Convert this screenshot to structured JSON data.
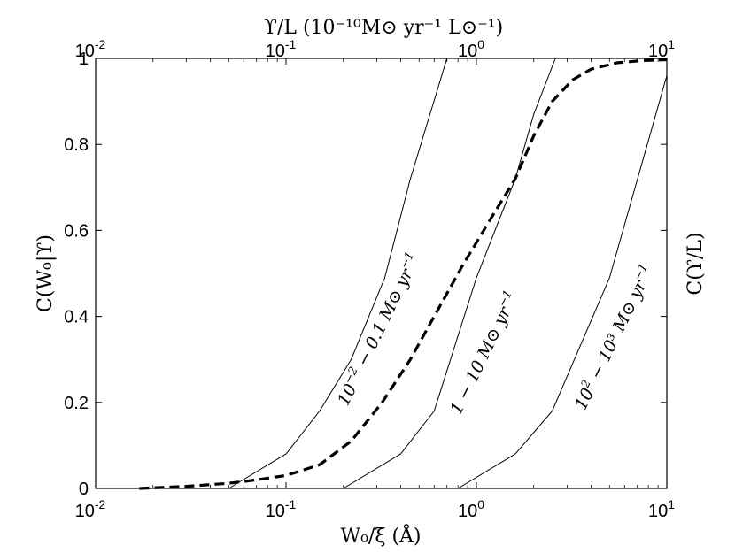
{
  "chart_data": {
    "type": "line",
    "x_scale": "log",
    "xlim": [
      0.01,
      10
    ],
    "ylim": [
      0,
      1
    ],
    "grid": false,
    "xlabel": "W₀/ξ (Å)",
    "ylabel": "C(W₀|ϒ)",
    "ylabel_right": "C(ϒ/L)",
    "top_axis_label": "ϒ/L (10⁻¹⁰M⊙ yr⁻¹ L⊙⁻¹)",
    "x_ticks": [
      {
        "value": 0.01,
        "base": "10",
        "exp": "-2"
      },
      {
        "value": 0.1,
        "base": "10",
        "exp": "-1"
      },
      {
        "value": 1,
        "base": "10",
        "exp": "0"
      },
      {
        "value": 10,
        "base": "10",
        "exp": "1"
      }
    ],
    "top_ticks": [
      {
        "value": 0.01,
        "base": "10",
        "exp": "-2"
      },
      {
        "value": 0.1,
        "base": "10",
        "exp": "-1"
      },
      {
        "value": 1,
        "base": "10",
        "exp": "0"
      },
      {
        "value": 10,
        "base": "10",
        "exp": "1"
      }
    ],
    "y_ticks": [
      {
        "value": 0,
        "label": "0"
      },
      {
        "value": 0.2,
        "label": "0.2"
      },
      {
        "value": 0.4,
        "label": "0.4"
      },
      {
        "value": 0.6,
        "label": "0.6"
      },
      {
        "value": 0.8,
        "label": "0.8"
      },
      {
        "value": 1,
        "label": "1"
      }
    ],
    "series": [
      {
        "style": "solid",
        "x": [
          0.05,
          0.1,
          0.15,
          0.22,
          0.33,
          0.45,
          0.7
        ],
        "y": [
          0.0,
          0.08,
          0.18,
          0.3,
          0.49,
          0.72,
          1.0
        ]
      },
      {
        "style": "solid",
        "x": [
          0.2,
          0.4,
          0.6,
          1.0,
          1.6,
          2.0,
          2.6
        ],
        "y": [
          0.0,
          0.08,
          0.18,
          0.49,
          0.72,
          0.87,
          1.0
        ]
      },
      {
        "style": "solid",
        "x": [
          0.8,
          1.6,
          2.5,
          5.0,
          10.0
        ],
        "y": [
          0.0,
          0.08,
          0.18,
          0.49,
          0.96
        ]
      },
      {
        "style": "dashed",
        "x": [
          0.017,
          0.03,
          0.05,
          0.07,
          0.1,
          0.15,
          0.22,
          0.32,
          0.45,
          0.6,
          0.85,
          1.2,
          1.6,
          2.0,
          2.5,
          3.2,
          4.0,
          5.5,
          7.5,
          10.0
        ],
        "y": [
          0.0,
          0.005,
          0.012,
          0.02,
          0.03,
          0.055,
          0.11,
          0.2,
          0.3,
          0.4,
          0.52,
          0.63,
          0.72,
          0.82,
          0.9,
          0.95,
          0.975,
          0.99,
          0.995,
          0.997
        ]
      }
    ],
    "annotations": [
      {
        "text_base": "10",
        "text_exp": "−2",
        "text_rest": " − 0.1 M⊙ yr",
        "text_tail": "−1",
        "x": 0.21,
        "y": 0.19,
        "angle": -64
      },
      {
        "text_base": "",
        "text_exp": "",
        "text_rest": "1 − 10 M⊙ yr",
        "text_tail": "−1",
        "x": 0.82,
        "y": 0.17,
        "angle": -64
      },
      {
        "text_base": "10",
        "text_exp": "2",
        "text_rest": " − 10³ M⊙ yr",
        "text_tail": "−1",
        "x": 3.7,
        "y": 0.18,
        "angle": -64
      }
    ]
  }
}
